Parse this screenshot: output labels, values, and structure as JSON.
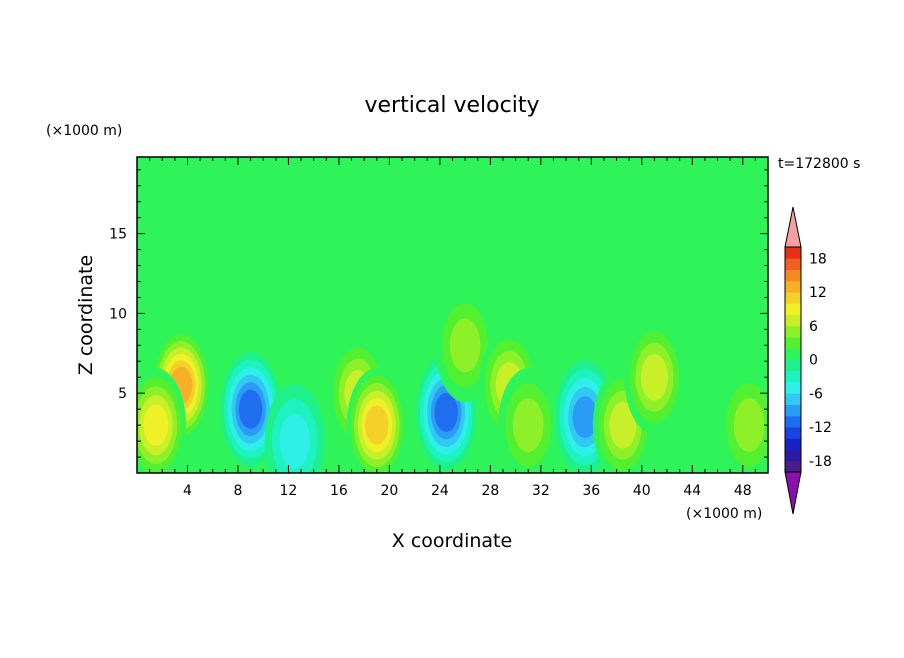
{
  "chart_data": {
    "type": "heatmap",
    "title": "vertical velocity",
    "xlabel": "X coordinate",
    "ylabel": "Z coordinate",
    "x_unit": "(×1000 m)",
    "y_unit": "(×1000 m)",
    "time_label": "t=172800 s",
    "xlim": [
      0,
      50
    ],
    "ylim": [
      0,
      19.8
    ],
    "x_ticks": [
      4,
      8,
      12,
      16,
      20,
      24,
      28,
      32,
      36,
      40,
      44,
      48
    ],
    "y_ticks": [
      5,
      10,
      15
    ],
    "colorbar": {
      "tick_labels": [
        18,
        12,
        6,
        0,
        -6,
        -12,
        -18
      ],
      "levels": [
        -20,
        -18,
        -16,
        -14,
        -12,
        -10,
        -8,
        -6,
        -4,
        -2,
        0,
        2,
        4,
        6,
        8,
        10,
        12,
        14,
        16,
        18,
        20
      ],
      "colors": [
        "#4a1c8c",
        "#2b1aa6",
        "#1622c4",
        "#1a44e0",
        "#1f6ef0",
        "#2a9cf5",
        "#33c8f4",
        "#2ef0e8",
        "#1ef2c0",
        "#1ef08c",
        "#2ef45a",
        "#52f030",
        "#8ef028",
        "#c8f028",
        "#f0f028",
        "#f5d028",
        "#f5b028",
        "#f58a20",
        "#f06020",
        "#e83018"
      ],
      "under_color": "#8a10b0",
      "over_color": "#f4a0a0"
    },
    "features": [
      {
        "x": 3.5,
        "z": 5.5,
        "value": 14
      },
      {
        "x": 1.5,
        "z": 3.0,
        "value": 10
      },
      {
        "x": 9.0,
        "z": 4.0,
        "value": -12
      },
      {
        "x": 12.5,
        "z": 2.0,
        "value": -6
      },
      {
        "x": 17.5,
        "z": 5.0,
        "value": 8
      },
      {
        "x": 19.0,
        "z": 3.0,
        "value": 12
      },
      {
        "x": 24.5,
        "z": 3.8,
        "value": -12
      },
      {
        "x": 26.0,
        "z": 8.0,
        "value": 6
      },
      {
        "x": 29.5,
        "z": 5.5,
        "value": 8
      },
      {
        "x": 31.0,
        "z": 3.0,
        "value": 6
      },
      {
        "x": 35.5,
        "z": 3.5,
        "value": -10
      },
      {
        "x": 38.5,
        "z": 3.0,
        "value": 8
      },
      {
        "x": 41.0,
        "z": 6.0,
        "value": 8
      },
      {
        "x": 48.5,
        "z": 3.0,
        "value": 6
      }
    ]
  }
}
